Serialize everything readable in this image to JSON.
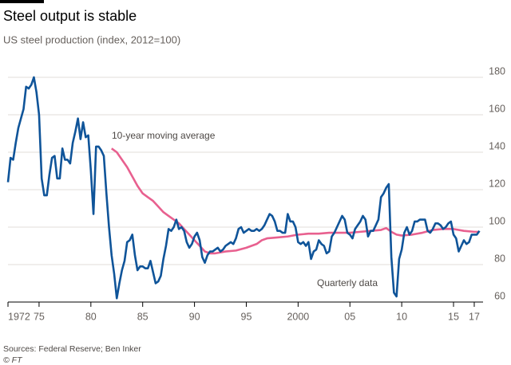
{
  "chart_data": {
    "type": "line",
    "title": "Steel output is stable",
    "subtitle": "US steel production (index, 2012=100)",
    "source": "Sources: Federal Reserve; Ben Inker",
    "credit": "© FT",
    "annotations": [
      "10-year moving average",
      "Quarterly data"
    ],
    "xlim": [
      1972,
      2017.85
    ],
    "xticks": [
      1972,
      {
        "value": 1975,
        "label": "75"
      },
      {
        "value": 1980,
        "label": "80"
      },
      {
        "value": 1985,
        "label": "85"
      },
      {
        "value": 1990,
        "label": "90"
      },
      {
        "value": 1995,
        "label": "95"
      },
      2000,
      {
        "value": 2005,
        "label": "05"
      },
      {
        "value": 2010,
        "label": "10"
      },
      {
        "value": 2015,
        "label": "15"
      },
      {
        "value": 2017,
        "label": "17"
      }
    ],
    "ylim": [
      60,
      180
    ],
    "yticks": [
      60,
      80,
      100,
      120,
      140,
      160,
      180
    ],
    "grid": true,
    "y_axis_side": "right",
    "series": [
      {
        "name": "Quarterly data",
        "color": "#0f5499",
        "x": [
          1972.0,
          1972.25,
          1972.5,
          1972.75,
          1973.0,
          1973.25,
          1973.5,
          1973.75,
          1974.0,
          1974.25,
          1974.5,
          1974.75,
          1975.0,
          1975.25,
          1975.5,
          1975.75,
          1976.0,
          1976.25,
          1976.5,
          1976.75,
          1977.0,
          1977.25,
          1977.5,
          1977.75,
          1978.0,
          1978.25,
          1978.5,
          1978.75,
          1979.0,
          1979.25,
          1979.5,
          1979.75,
          1980.0,
          1980.25,
          1980.5,
          1980.75,
          1981.0,
          1981.25,
          1981.5,
          1981.75,
          1982.0,
          1982.25,
          1982.5,
          1982.75,
          1983.0,
          1983.25,
          1983.5,
          1983.75,
          1984.0,
          1984.25,
          1984.5,
          1984.75,
          1985.0,
          1985.25,
          1985.5,
          1985.75,
          1986.0,
          1986.25,
          1986.5,
          1986.75,
          1987.0,
          1987.25,
          1987.5,
          1987.75,
          1988.0,
          1988.25,
          1988.5,
          1988.75,
          1989.0,
          1989.25,
          1989.5,
          1989.75,
          1990.0,
          1990.25,
          1990.5,
          1990.75,
          1991.0,
          1991.25,
          1991.5,
          1991.75,
          1992.0,
          1992.25,
          1992.5,
          1992.75,
          1993.0,
          1993.25,
          1993.5,
          1993.75,
          1994.0,
          1994.25,
          1994.5,
          1994.75,
          1995.0,
          1995.25,
          1995.5,
          1995.75,
          1996.0,
          1996.25,
          1996.5,
          1996.75,
          1997.0,
          1997.25,
          1997.5,
          1997.75,
          1998.0,
          1998.25,
          1998.5,
          1998.75,
          1999.0,
          1999.25,
          1999.5,
          1999.75,
          2000.0,
          2000.25,
          2000.5,
          2000.75,
          2001.0,
          2001.25,
          2001.5,
          2001.75,
          2002.0,
          2002.25,
          2002.5,
          2002.75,
          2003.0,
          2003.25,
          2003.5,
          2003.75,
          2004.0,
          2004.25,
          2004.5,
          2004.75,
          2005.0,
          2005.25,
          2005.5,
          2005.75,
          2006.0,
          2006.25,
          2006.5,
          2006.75,
          2007.0,
          2007.25,
          2007.5,
          2007.75,
          2008.0,
          2008.25,
          2008.5,
          2008.75,
          2009.0,
          2009.25,
          2009.5,
          2009.75,
          2010.0,
          2010.25,
          2010.5,
          2010.75,
          2011.0,
          2011.25,
          2011.5,
          2011.75,
          2012.0,
          2012.25,
          2012.5,
          2012.75,
          2013.0,
          2013.25,
          2013.5,
          2013.75,
          2014.0,
          2014.25,
          2014.5,
          2014.75,
          2015.0,
          2015.25,
          2015.5,
          2015.75,
          2016.0,
          2016.25,
          2016.5,
          2016.75,
          2017.0,
          2017.25,
          2017.5
        ],
        "values": [
          124,
          137,
          136,
          145,
          153,
          158,
          163,
          175,
          174,
          176,
          180,
          172,
          160,
          126,
          117,
          117,
          128,
          137,
          138,
          126,
          126,
          142,
          136,
          136,
          134,
          145,
          151,
          158,
          147,
          156,
          148,
          149,
          130,
          107,
          143,
          143,
          141,
          138,
          118,
          100,
          85,
          75,
          62,
          70,
          77,
          82,
          92,
          93,
          96,
          85,
          77,
          79,
          79,
          78,
          78,
          82,
          76,
          70,
          71,
          74,
          83,
          90,
          99,
          98,
          100,
          104,
          99,
          100,
          98,
          92,
          89,
          91,
          95,
          97,
          93,
          84,
          81,
          85,
          87,
          87,
          88,
          89,
          87,
          88,
          90,
          91,
          92,
          91,
          94,
          99,
          100,
          97,
          98,
          99,
          98,
          98,
          99,
          98,
          99,
          101,
          104,
          107,
          106,
          103,
          98,
          98,
          97,
          97,
          107,
          103,
          103,
          100,
          92,
          91,
          92,
          90,
          92,
          83,
          87,
          88,
          93,
          91,
          90,
          86,
          87,
          95,
          97,
          100,
          103,
          106,
          104,
          97,
          96,
          94,
          99,
          101,
          103,
          106,
          104,
          95,
          98,
          98,
          101,
          104,
          116,
          118,
          121,
          123,
          84,
          65,
          63,
          83,
          88,
          97,
          100,
          96,
          98,
          103,
          103,
          104,
          104,
          104,
          98,
          97,
          99,
          102,
          102,
          101,
          99,
          100,
          102,
          103,
          96,
          94,
          87,
          90,
          93,
          91,
          92,
          96,
          96,
          96,
          98
        ]
      },
      {
        "name": "10-year moving average",
        "color": "#e8608f",
        "x": [
          1982.0,
          1982.5,
          1983.0,
          1983.5,
          1984.0,
          1984.5,
          1985.0,
          1985.5,
          1986.0,
          1986.5,
          1987.0,
          1987.5,
          1988.0,
          1988.5,
          1989.0,
          1989.5,
          1990.0,
          1990.5,
          1991.0,
          1991.5,
          1992.0,
          1992.5,
          1993.0,
          1994.0,
          1995.0,
          1996.0,
          1996.5,
          1997.0,
          1998.0,
          1999.0,
          2000.0,
          2001.0,
          2002.0,
          2003.0,
          2004.0,
          2005.0,
          2006.0,
          2007.0,
          2008.0,
          2008.5,
          2009.0,
          2009.5,
          2010.0,
          2011.0,
          2012.0,
          2013.0,
          2014.0,
          2015.0,
          2016.0,
          2017.0,
          2017.5
        ],
        "values": [
          142,
          140,
          136,
          132,
          127,
          122,
          118,
          116,
          114,
          111,
          108,
          106,
          104,
          102,
          99,
          96,
          93,
          90,
          87,
          86,
          86,
          86.5,
          87,
          87.5,
          89,
          91,
          93,
          94,
          94.5,
          95,
          96,
          96.5,
          96.5,
          97,
          97,
          97,
          97.5,
          98,
          98.5,
          99.5,
          97.5,
          96,
          95.5,
          96,
          97,
          98.5,
          99,
          99,
          98,
          97.5,
          97.5
        ]
      }
    ]
  }
}
